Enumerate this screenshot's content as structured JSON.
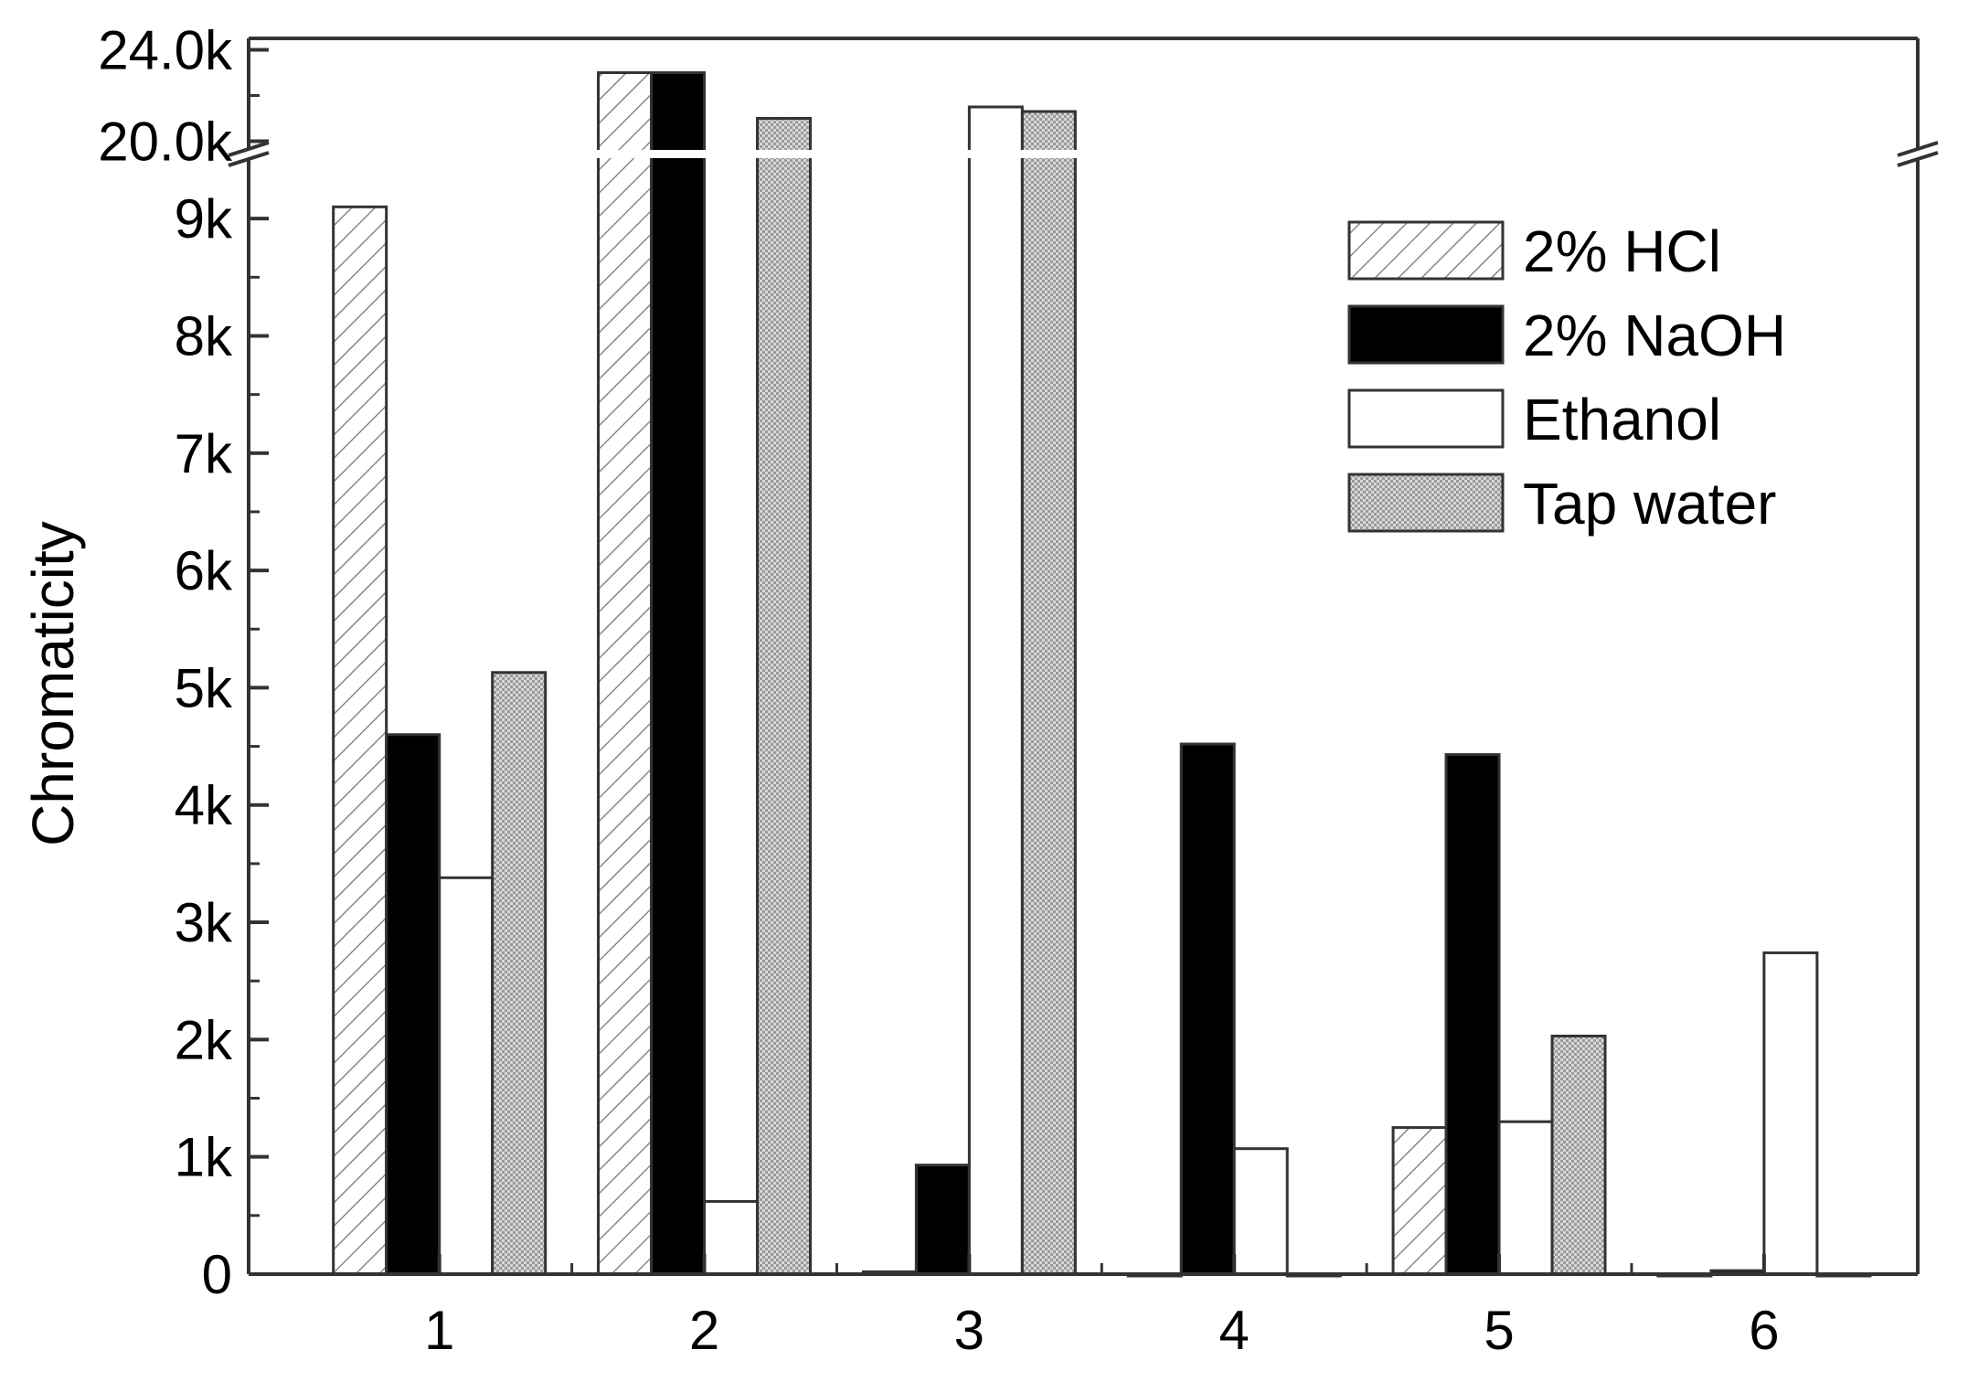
{
  "chart_data": {
    "type": "bar",
    "title": "",
    "xlabel": "",
    "ylabel": "Chromaticity",
    "categories": [
      "1",
      "2",
      "3",
      "4",
      "5",
      "6"
    ],
    "axis_break": {
      "lower_range": [
        0,
        9500
      ],
      "upper_range": [
        19700,
        24500
      ]
    },
    "ylim": [
      0,
      24500
    ],
    "y_ticks_lower": [
      {
        "value": 0,
        "label": "0"
      },
      {
        "value": 1000,
        "label": "1k"
      },
      {
        "value": 2000,
        "label": "2k"
      },
      {
        "value": 3000,
        "label": "3k"
      },
      {
        "value": 4000,
        "label": "4k"
      },
      {
        "value": 5000,
        "label": "5k"
      },
      {
        "value": 6000,
        "label": "6k"
      },
      {
        "value": 7000,
        "label": "7k"
      },
      {
        "value": 8000,
        "label": "8k"
      },
      {
        "value": 9000,
        "label": "9k"
      }
    ],
    "y_ticks_upper": [
      {
        "value": 20000,
        "label": "20.0k"
      },
      {
        "value": 24000,
        "label": "24.0k"
      }
    ],
    "series": [
      {
        "name": "2% HCl",
        "legend_label": "2% HCl",
        "pattern": "hatch",
        "values": [
          9100,
          23000,
          20,
          0,
          1250,
          0
        ]
      },
      {
        "name": "2% NaOH",
        "legend_label": "2% NaOH",
        "pattern": "solid-black",
        "values": [
          4600,
          23000,
          930,
          4520,
          4430,
          30
        ]
      },
      {
        "name": "Ethanol",
        "legend_label": "Ethanol",
        "pattern": "white",
        "values": [
          3380,
          620,
          21500,
          1070,
          1300,
          2740
        ]
      },
      {
        "name": "Tap water",
        "legend_label": "Tap water",
        "pattern": "dotted",
        "values": [
          5130,
          21000,
          21300,
          0,
          2030,
          0
        ]
      }
    ],
    "grid": false,
    "legend_position": "top-right"
  }
}
